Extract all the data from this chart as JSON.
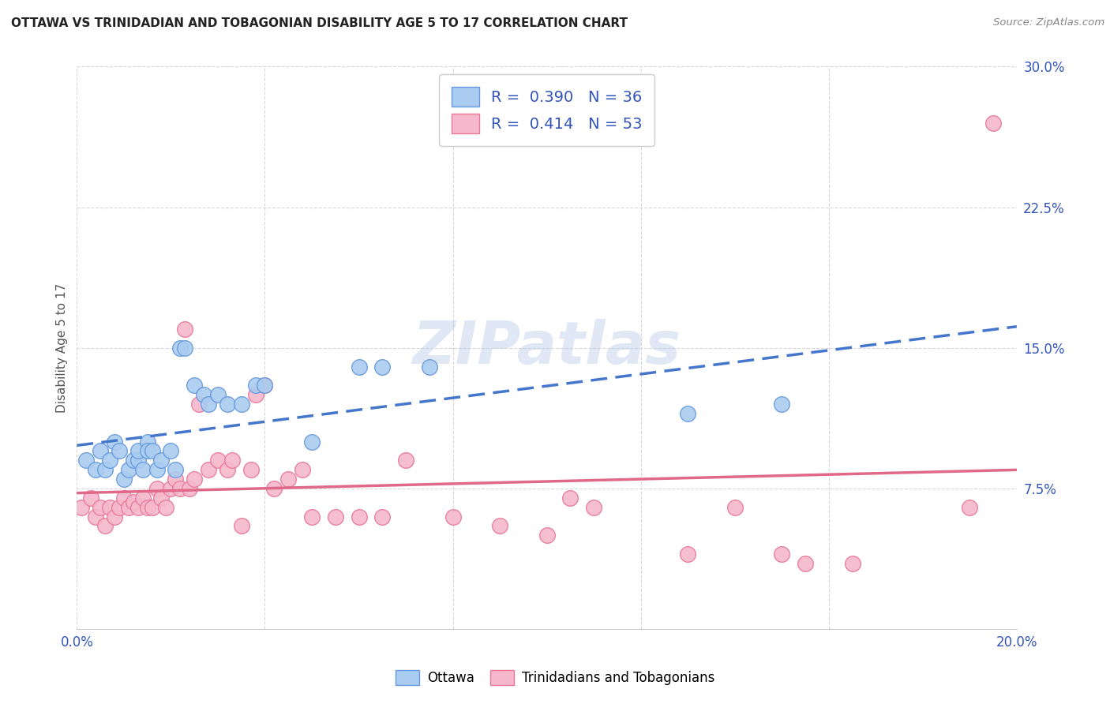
{
  "title": "OTTAWA VS TRINIDADIAN AND TOBAGONIAN DISABILITY AGE 5 TO 17 CORRELATION CHART",
  "source": "Source: ZipAtlas.com",
  "ylabel": "Disability Age 5 to 17",
  "xlim": [
    0.0,
    0.2
  ],
  "ylim": [
    0.0,
    0.3
  ],
  "xticks": [
    0.0,
    0.04,
    0.08,
    0.12,
    0.16,
    0.2
  ],
  "yticks": [
    0.075,
    0.15,
    0.225,
    0.3
  ],
  "ytick_labels": [
    "7.5%",
    "15.0%",
    "22.5%",
    "30.0%"
  ],
  "xtick_labels": [
    "0.0%",
    "",
    "",
    "",
    "",
    "20.0%"
  ],
  "background_color": "#ffffff",
  "grid_color": "#d8d8d8",
  "watermark": "ZIPatlas",
  "ottawa_color": "#aaccf0",
  "ottawa_edge_color": "#6699dd",
  "trinidadian_color": "#f5b8cc",
  "trinidadian_edge_color": "#e87898",
  "ottawa_R": 0.39,
  "ottawa_N": 36,
  "trinidadian_R": 0.414,
  "trinidadian_N": 53,
  "ottawa_line_color": "#4477cc",
  "ottawa_line_dash": [
    6,
    3
  ],
  "trinidadian_line_color": "#e06888",
  "legend_R_color": "#3355bb",
  "legend_N_color": "#3355bb",
  "title_color": "#222222",
  "source_color": "#888888",
  "axis_label_color": "#555555",
  "tick_color": "#3355bb",
  "ottawa_scatter_x": [
    0.002,
    0.004,
    0.005,
    0.006,
    0.007,
    0.008,
    0.009,
    0.01,
    0.011,
    0.012,
    0.013,
    0.013,
    0.014,
    0.015,
    0.015,
    0.016,
    0.017,
    0.018,
    0.02,
    0.021,
    0.022,
    0.023,
    0.025,
    0.027,
    0.028,
    0.03,
    0.032,
    0.035,
    0.038,
    0.04,
    0.05,
    0.06,
    0.065,
    0.075,
    0.13,
    0.15
  ],
  "ottawa_scatter_y": [
    0.09,
    0.085,
    0.095,
    0.085,
    0.09,
    0.1,
    0.095,
    0.08,
    0.085,
    0.09,
    0.09,
    0.095,
    0.085,
    0.1,
    0.095,
    0.095,
    0.085,
    0.09,
    0.095,
    0.085,
    0.15,
    0.15,
    0.13,
    0.125,
    0.12,
    0.125,
    0.12,
    0.12,
    0.13,
    0.13,
    0.1,
    0.14,
    0.14,
    0.14,
    0.115,
    0.12
  ],
  "trinidadian_scatter_x": [
    0.001,
    0.003,
    0.004,
    0.005,
    0.006,
    0.007,
    0.008,
    0.009,
    0.01,
    0.011,
    0.012,
    0.013,
    0.014,
    0.015,
    0.016,
    0.017,
    0.018,
    0.019,
    0.02,
    0.021,
    0.022,
    0.023,
    0.024,
    0.025,
    0.026,
    0.028,
    0.03,
    0.032,
    0.033,
    0.035,
    0.037,
    0.038,
    0.04,
    0.042,
    0.045,
    0.048,
    0.05,
    0.055,
    0.06,
    0.065,
    0.07,
    0.08,
    0.09,
    0.1,
    0.105,
    0.11,
    0.13,
    0.14,
    0.15,
    0.155,
    0.165,
    0.19,
    0.195
  ],
  "trinidadian_scatter_y": [
    0.065,
    0.07,
    0.06,
    0.065,
    0.055,
    0.065,
    0.06,
    0.065,
    0.07,
    0.065,
    0.068,
    0.065,
    0.07,
    0.065,
    0.065,
    0.075,
    0.07,
    0.065,
    0.075,
    0.08,
    0.075,
    0.16,
    0.075,
    0.08,
    0.12,
    0.085,
    0.09,
    0.085,
    0.09,
    0.055,
    0.085,
    0.125,
    0.13,
    0.075,
    0.08,
    0.085,
    0.06,
    0.06,
    0.06,
    0.06,
    0.09,
    0.06,
    0.055,
    0.05,
    0.07,
    0.065,
    0.04,
    0.065,
    0.04,
    0.035,
    0.035,
    0.065,
    0.27
  ]
}
